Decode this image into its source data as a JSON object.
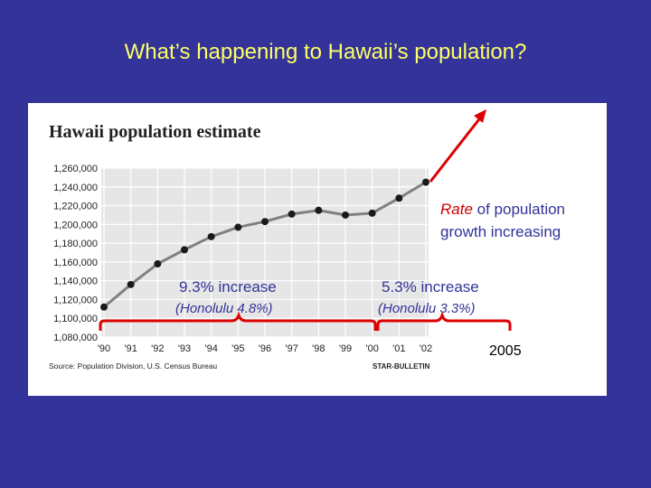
{
  "slide": {
    "title": "What’s happening to Hawaii’s population?"
  },
  "annotations": {
    "rate_word": "Rate",
    "rate_rest_line1": " of population",
    "rate_line2": "growth increasing",
    "increase_left": "9.3% increase",
    "increase_left_sub": "(Honolulu 4.8%)",
    "increase_right": "5.3% increase",
    "increase_right_sub": "(Honolulu 3.3%)",
    "year_label": "2005"
  },
  "colors": {
    "background": "#333399",
    "title": "#ffff66",
    "line": "#808080",
    "marker": "#1a1a1a",
    "grid_bg": "#e6e6e6",
    "annotation_red": "#dd0000",
    "rate_word": "#cc0000",
    "annotation_text": "#333399"
  },
  "chart_data": {
    "type": "line",
    "title": "Hawaii population estimate",
    "source": "Source: Population Division, U.S. Census Bureau",
    "credit": "STAR-BULLETIN",
    "categories": [
      "'90",
      "'91",
      "'92",
      "'93",
      "'94",
      "'95",
      "'96",
      "'97",
      "'98",
      "'99",
      "'00",
      "'01",
      "'02"
    ],
    "values": [
      1112000,
      1136000,
      1158000,
      1173000,
      1187000,
      1197000,
      1203000,
      1211000,
      1215000,
      1210000,
      1212000,
      1228000,
      1245000
    ],
    "ylim": [
      1080000,
      1260000
    ],
    "yticks": [
      "1,080,000",
      "1,100,000",
      "1,120,000",
      "1,140,000",
      "1,160,000",
      "1,180,000",
      "1,200,000",
      "1,220,000",
      "1,240,000",
      "1,260,000"
    ],
    "ytick_values": [
      1080000,
      1100000,
      1120000,
      1140000,
      1160000,
      1180000,
      1200000,
      1220000,
      1240000,
      1260000
    ],
    "grid": true
  }
}
